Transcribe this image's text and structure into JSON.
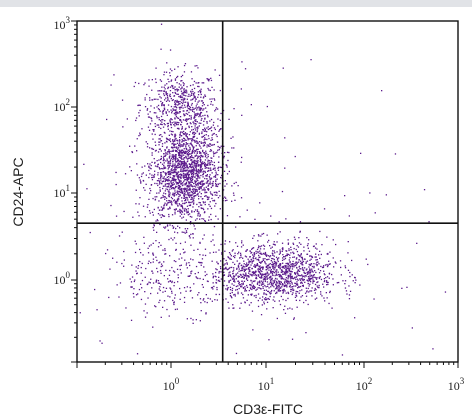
{
  "chart_data": {
    "type": "scatter",
    "title": "",
    "xlabel": "CD3ε-FITC",
    "ylabel": "CD24-APC",
    "xscale": "log",
    "yscale": "log",
    "xlim": [
      0.1,
      1000
    ],
    "ylim": [
      0.1,
      1000
    ],
    "x_tick_labels": [
      {
        "base": "10",
        "exp": "0"
      },
      {
        "base": "10",
        "exp": "1"
      },
      {
        "base": "10",
        "exp": "2"
      },
      {
        "base": "10",
        "exp": "3"
      }
    ],
    "y_tick_labels": [
      {
        "base": "10",
        "exp": "0"
      },
      {
        "base": "10",
        "exp": "1"
      },
      {
        "base": "10",
        "exp": "2"
      },
      {
        "base": "10",
        "exp": "3"
      }
    ],
    "x_tick_values": [
      1,
      10,
      100,
      1000
    ],
    "y_tick_values": [
      1,
      10,
      100,
      1000
    ],
    "quadrant_gates": {
      "x": 3.5,
      "y": 4.5
    },
    "point_color": "#5b1a8c",
    "clusters": [
      {
        "center_x": 1.2,
        "center_y": 110,
        "spread_x": 0.13,
        "spread_y": 0.12,
        "count": 450
      },
      {
        "center_x": 1.35,
        "center_y": 16,
        "spread_x": 0.12,
        "spread_y": 0.17,
        "count": 1500
      },
      {
        "center_x": 1.6,
        "center_y": 45,
        "spread_x": 0.1,
        "spread_y": 0.18,
        "count": 300
      },
      {
        "center_x": 12,
        "center_y": 1.2,
        "spread_x": 0.2,
        "spread_y": 0.11,
        "count": 1300
      },
      {
        "center_x": 1.0,
        "center_y": 1.1,
        "spread_x": 0.2,
        "spread_y": 0.14,
        "count": 250
      },
      {
        "center_x": 5,
        "center_y": 5,
        "spread_x": 0.6,
        "spread_y": 0.6,
        "count": 120
      }
    ]
  }
}
